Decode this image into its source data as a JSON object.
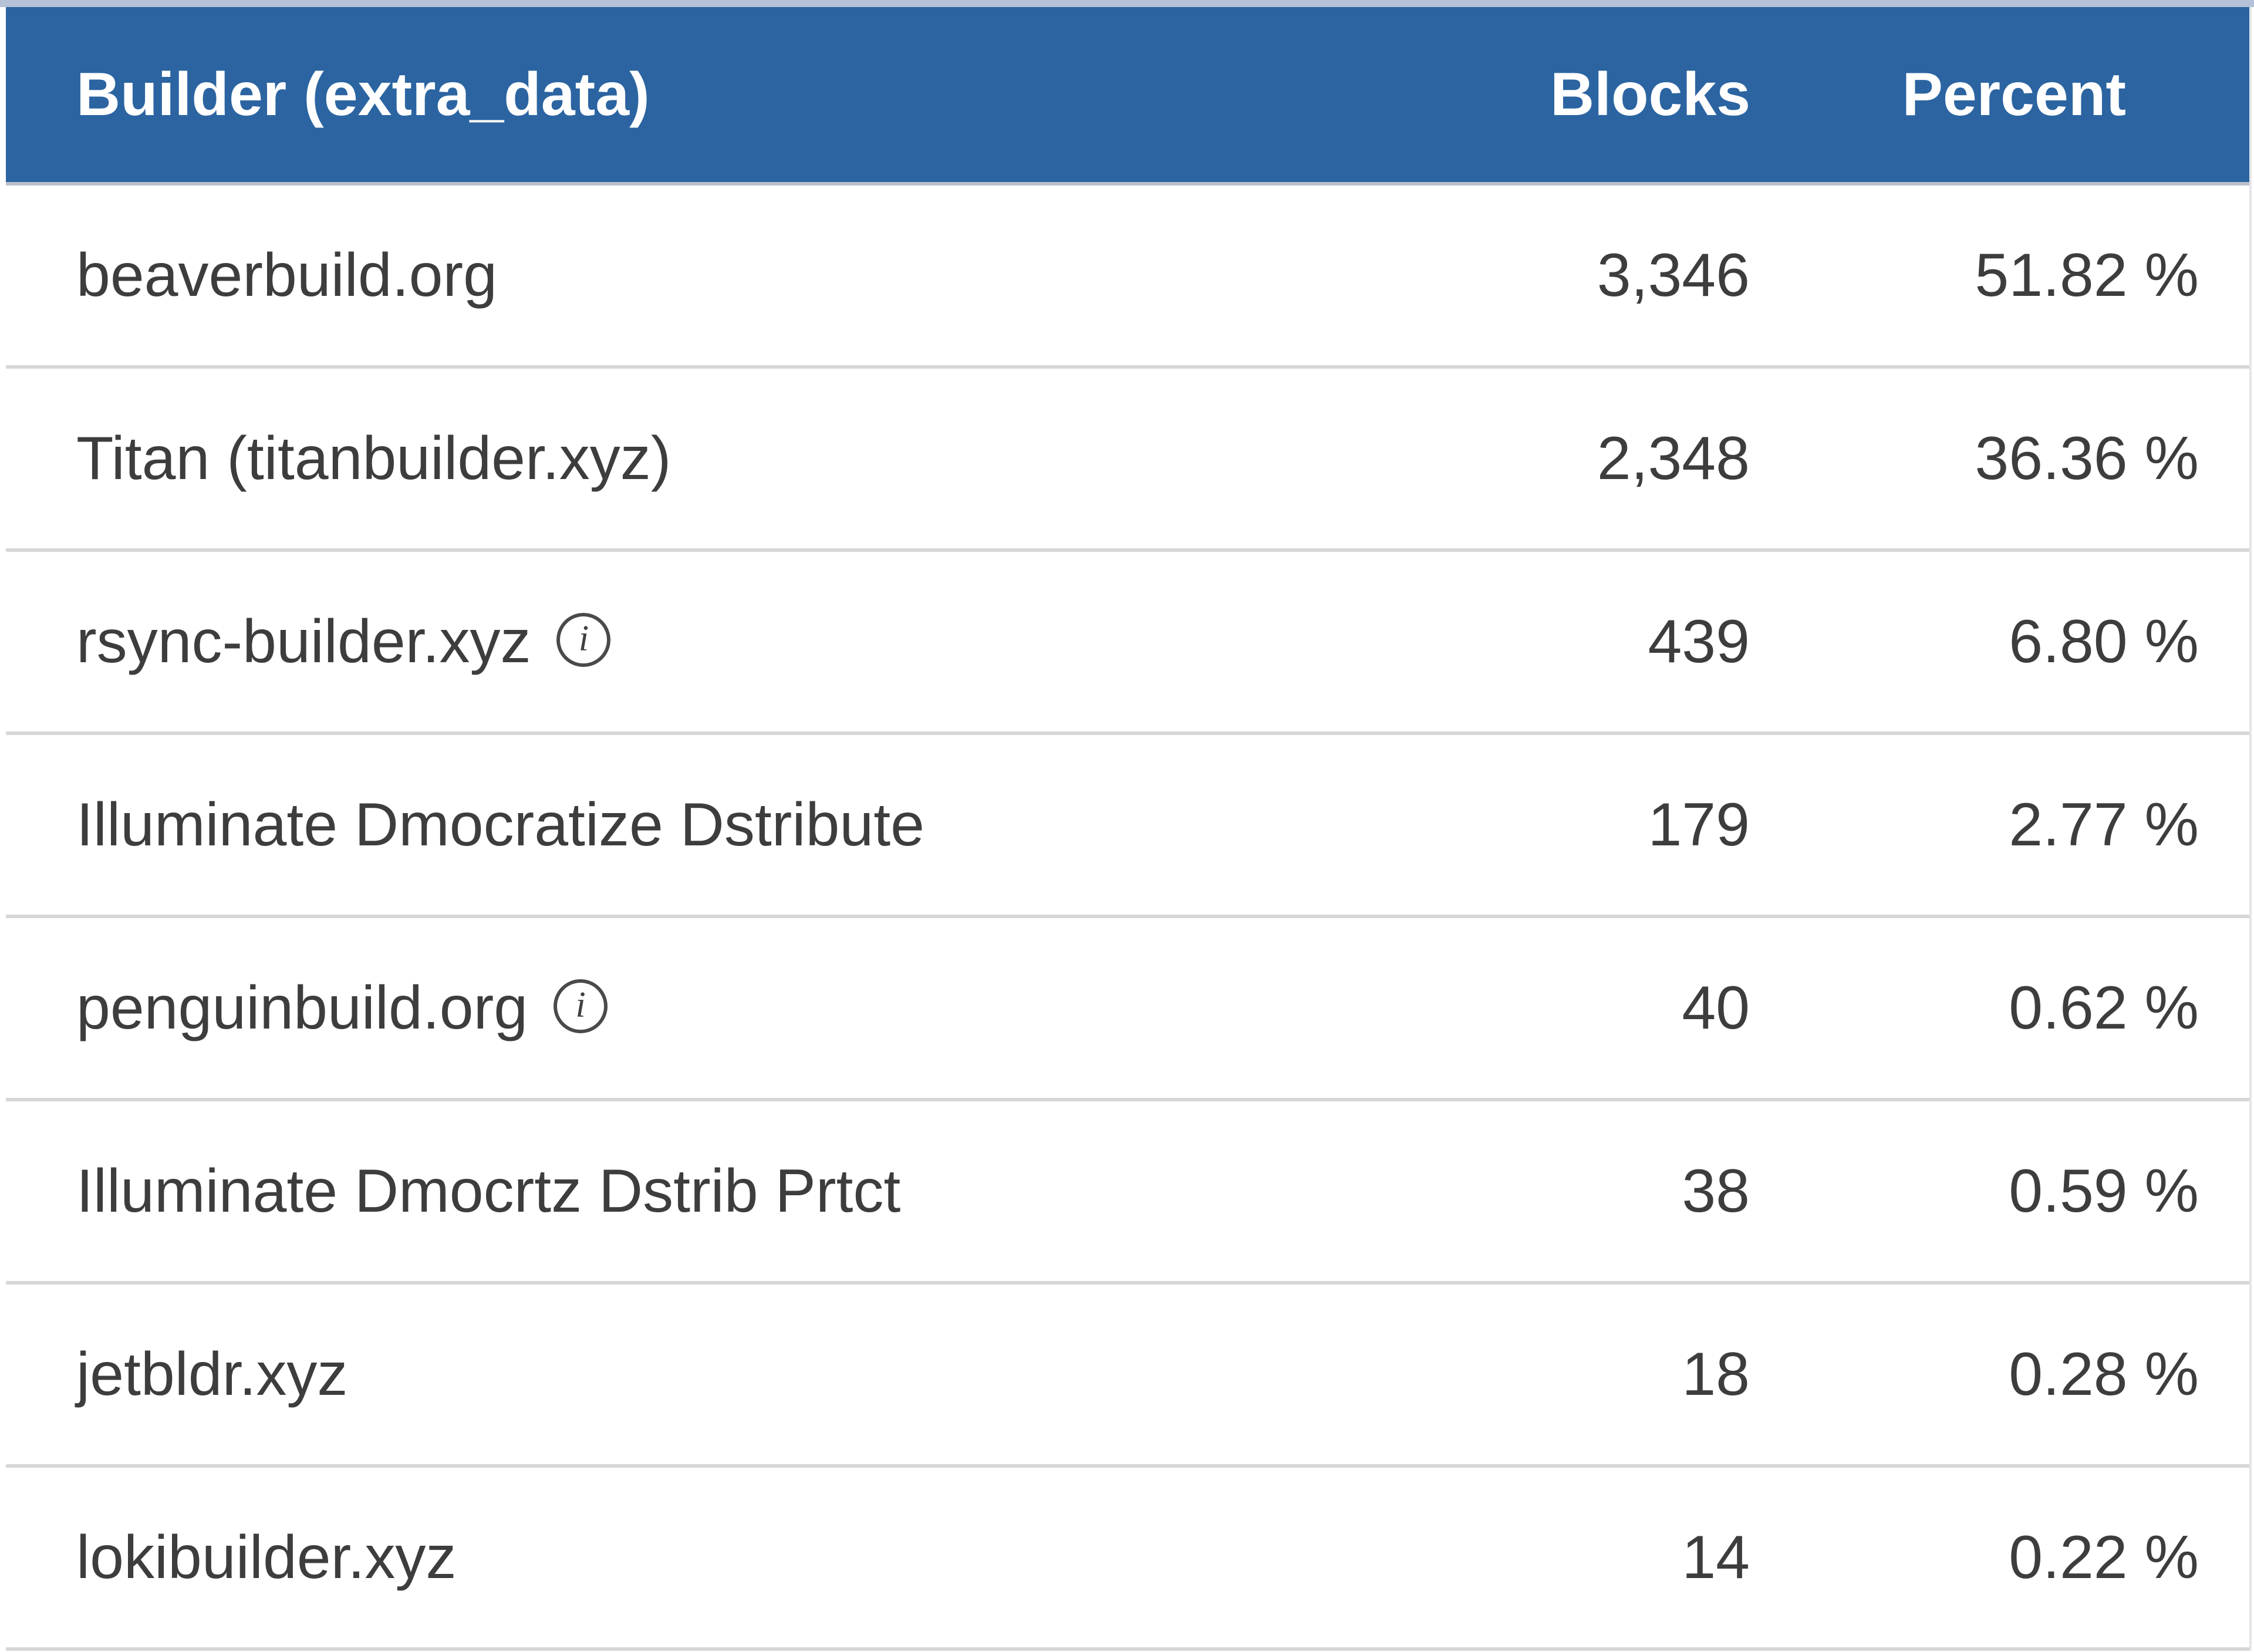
{
  "table": {
    "columns": [
      {
        "label": "Builder (extra_data)"
      },
      {
        "label": "Blocks"
      },
      {
        "label": "Percent"
      }
    ],
    "rows": [
      {
        "builder": "beaverbuild.org",
        "has_info_icon": false,
        "blocks": "3,346",
        "percent": "51.82 %"
      },
      {
        "builder": "Titan (titanbuilder.xyz)",
        "has_info_icon": false,
        "blocks": "2,348",
        "percent": "36.36 %"
      },
      {
        "builder": "rsync-builder.xyz",
        "has_info_icon": true,
        "blocks": "439",
        "percent": "6.80 %"
      },
      {
        "builder": "Illuminate Dmocratize Dstribute",
        "has_info_icon": false,
        "blocks": "179",
        "percent": "2.77 %"
      },
      {
        "builder": "penguinbuild.org",
        "has_info_icon": true,
        "blocks": "40",
        "percent": "0.62 %"
      },
      {
        "builder": "Illuminate Dmocrtz Dstrib Prtct",
        "has_info_icon": false,
        "blocks": "38",
        "percent": "0.59 %"
      },
      {
        "builder": "jetbldr.xyz",
        "has_info_icon": false,
        "blocks": "18",
        "percent": "0.28 %"
      },
      {
        "builder": "lokibuilder.xyz",
        "has_info_icon": false,
        "blocks": "14",
        "percent": "0.22 %"
      }
    ],
    "info_icon_glyph": "i",
    "colors": {
      "header_bg": "#2b64a1",
      "header_text": "#ffffff",
      "row_text": "#3d3d3d",
      "row_separator": "#d7d7d7",
      "top_strip": "#b4c1d6"
    }
  }
}
